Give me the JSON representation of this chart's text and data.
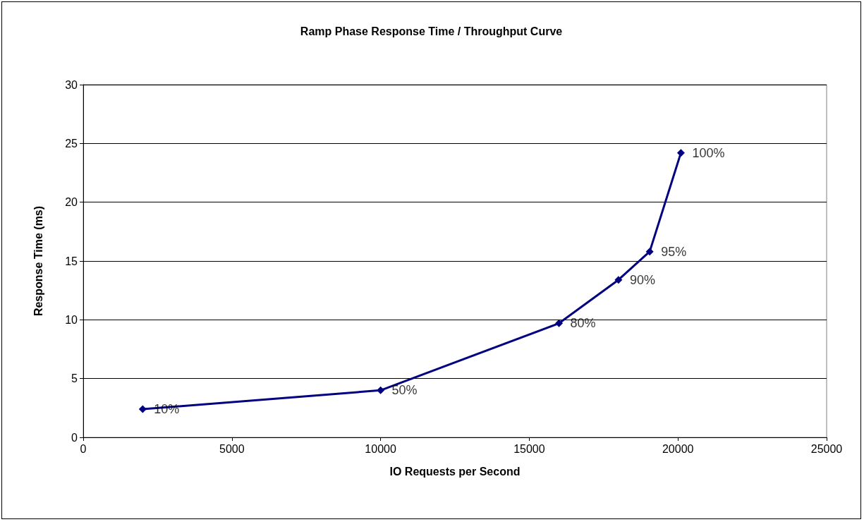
{
  "chart_data": {
    "type": "line",
    "title": "Ramp Phase Response Time / Throughput Curve",
    "xlabel": "IO Requests per Second",
    "ylabel": "Response Time (ms)",
    "x": [
      2000,
      10000,
      16000,
      18000,
      19050,
      20100
    ],
    "series": [
      {
        "color": "#000080",
        "values": [
          2.4,
          4.0,
          9.7,
          13.4,
          15.8,
          24.2
        ]
      }
    ],
    "annotations": [
      {
        "text": "10%",
        "x": 2000,
        "y": 2.4
      },
      {
        "text": "50%",
        "x": 10000,
        "y": 4.0
      },
      {
        "text": "80%",
        "x": 16000,
        "y": 9.7
      },
      {
        "text": "90%",
        "x": 18000,
        "y": 13.4
      },
      {
        "text": "95%",
        "x": 19050,
        "y": 15.8
      },
      {
        "text": "100%",
        "x": 20100,
        "y": 24.2
      }
    ],
    "xlim": [
      0,
      25000
    ],
    "xticks": [
      0,
      5000,
      10000,
      15000,
      20000,
      25000
    ],
    "ylim": [
      0,
      30
    ],
    "yticks": [
      0,
      5,
      10,
      15,
      20,
      25,
      30
    ],
    "grid": "y",
    "marker": "diamond",
    "line_style": "solid"
  }
}
